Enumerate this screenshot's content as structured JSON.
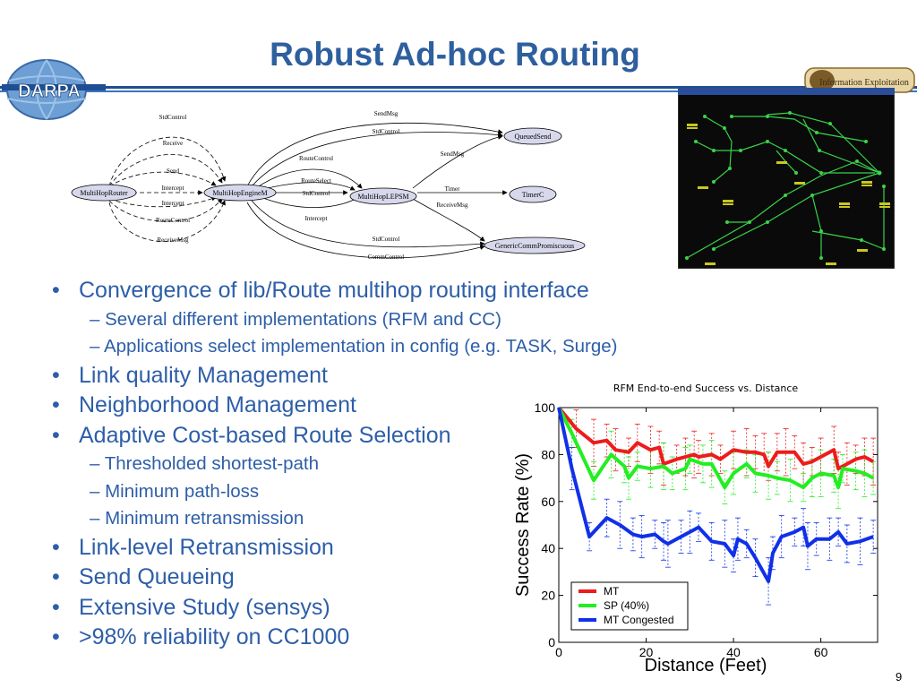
{
  "slide": {
    "title": "Robust Ad-hoc Routing",
    "page_number": "9"
  },
  "logo_left": {
    "text": "DARPA"
  },
  "logo_right": {
    "text": "Information Exploitation"
  },
  "diagram": {
    "nodes": [
      "MultiHopRouter",
      "MultiHopEngineM",
      "MultiHopLEPSM",
      "QueuedSend",
      "TimerC",
      "GenericCommPromiscuous"
    ],
    "edge_labels": [
      "StdControl",
      "Receive",
      "Send",
      "Intercept",
      "Intercept",
      "RouteControl",
      "ReceiveMsg",
      "SendMsg",
      "StdControl",
      "RouteControl",
      "RouteSelect",
      "StdControl",
      "Intercept",
      "SendMsg",
      "Timer",
      "ReceiveMsg",
      "StdControl",
      "CommControl"
    ]
  },
  "bullets": [
    {
      "level": 1,
      "text": "Convergence of lib/Route multihop routing interface"
    },
    {
      "level": 2,
      "text": "– Several different implementations (RFM and CC)"
    },
    {
      "level": 2,
      "text": "– Applications select implementation in config (e.g. TASK, Surge)"
    },
    {
      "level": 1,
      "text": "Link quality Management"
    },
    {
      "level": 1,
      "text": "Neighborhood Management"
    },
    {
      "level": 1,
      "text": "Adaptive Cost-based Route Selection"
    },
    {
      "level": 2,
      "text": "– Thresholded shortest-path"
    },
    {
      "level": 2,
      "text": "– Minimum path-loss"
    },
    {
      "level": 2,
      "text": "– Minimum retransmission"
    },
    {
      "level": 1,
      "text": "Link-level Retransmission"
    },
    {
      "level": 1,
      "text": "Send Queueing"
    },
    {
      "level": 1,
      "text": "Extensive Study (sensys)"
    },
    {
      "level": 1,
      "text": ">98% reliability on CC1000"
    }
  ],
  "bullet_symbol": "•",
  "colors": {
    "title": "#2e5f9e",
    "bullets": "#2d5ea8",
    "header_line": "#1f4f92",
    "series_mt": "#ee1c1c",
    "series_sp": "#22ee22",
    "series_mtc": "#1030e8",
    "screenshot_bg": "#0a0a0a",
    "screenshot_links": "#39d34a"
  },
  "chart_data": {
    "type": "line",
    "title": "RFM End-to-end Success vs. Distance",
    "xlabel": "Distance (Feet)",
    "ylabel": "Success Rate (%)",
    "xlim": [
      0,
      73
    ],
    "ylim": [
      0,
      100
    ],
    "xticks": [
      0,
      20,
      40,
      60
    ],
    "yticks": [
      0,
      20,
      40,
      60,
      80,
      100
    ],
    "legend_position": "bottom-left",
    "grid": false,
    "series": [
      {
        "name": "MT",
        "color": "#ee1c1c",
        "x": [
          0,
          4,
          8,
          11,
          13,
          16,
          18,
          21,
          23,
          24,
          27,
          29,
          31,
          32,
          35,
          37,
          40,
          43,
          45,
          47,
          48,
          50,
          52,
          54,
          56,
          58,
          60,
          63,
          64,
          66,
          68,
          70,
          72
        ],
        "y": [
          100,
          91,
          85,
          86,
          82,
          81,
          85,
          82,
          83,
          76,
          78,
          79,
          80,
          79,
          80,
          78,
          82,
          81,
          81,
          80,
          75,
          81,
          81,
          81,
          76,
          77,
          79,
          82,
          74,
          76,
          78,
          79,
          77
        ]
      },
      {
        "name": "SP (40%)",
        "color": "#22ee22",
        "x": [
          0,
          3,
          8,
          12,
          15,
          16,
          18,
          21,
          24,
          26,
          29,
          30,
          33,
          35,
          38,
          40,
          43,
          45,
          48,
          50,
          53,
          56,
          58,
          60,
          63,
          64,
          65,
          68,
          70,
          72
        ],
        "y": [
          100,
          89,
          69,
          80,
          75,
          70,
          75,
          74,
          75,
          72,
          74,
          78,
          76,
          76,
          66,
          72,
          76,
          72,
          71,
          70,
          69,
          66,
          70,
          72,
          71,
          66,
          74,
          73,
          72,
          70
        ]
      },
      {
        "name": "MT Congested",
        "color": "#1030e8",
        "x": [
          0,
          3,
          7,
          11,
          14,
          17,
          19,
          22,
          24,
          25,
          28,
          30,
          32,
          35,
          38,
          40,
          41,
          43,
          45,
          48,
          49,
          51,
          54,
          56,
          57,
          59,
          62,
          64,
          66,
          69,
          72
        ],
        "y": [
          100,
          74,
          45,
          53,
          50,
          46,
          45,
          46,
          43,
          42,
          45,
          47,
          49,
          43,
          42,
          37,
          44,
          42,
          36,
          26,
          38,
          45,
          47,
          49,
          41,
          44,
          44,
          47,
          42,
          43,
          45
        ]
      }
    ]
  }
}
